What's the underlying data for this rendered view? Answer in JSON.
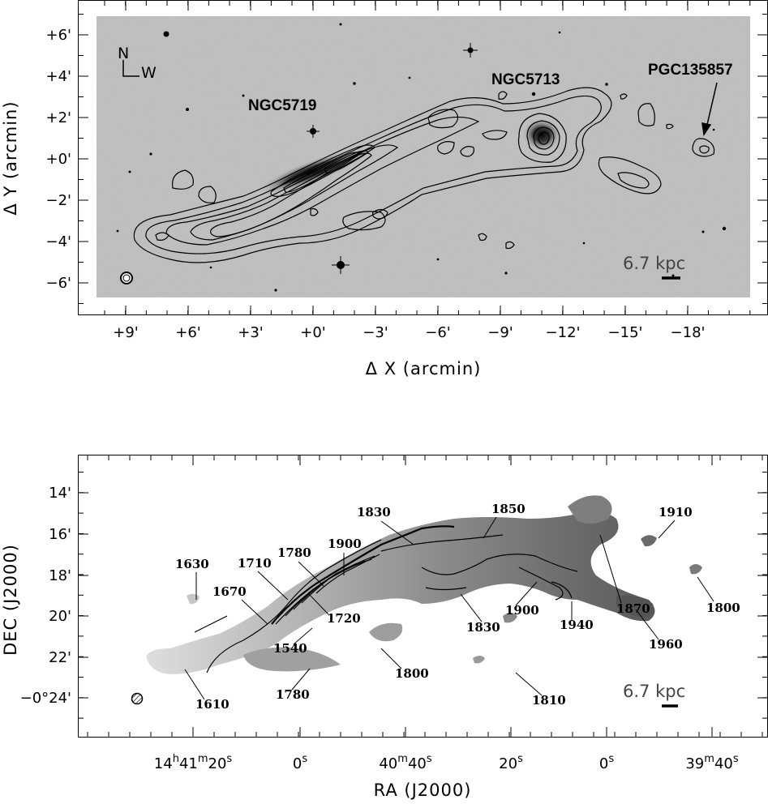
{
  "colors": {
    "sky": "#b8b8b8",
    "contour": "#000000"
  },
  "chart_data": [
    {
      "type": "contour",
      "panel": "top",
      "xlabel": "Δ X (arcmin)",
      "ylabel": "Δ Y (arcmin)",
      "xlim": [
        11,
        -21
      ],
      "ylim": [
        -7.5,
        7.5
      ],
      "x_ticks": [
        "+9'",
        "+6'",
        "+3'",
        "+0'",
        "−3'",
        "−6'",
        "−9'",
        "−12'",
        "−15'",
        "−18'"
      ],
      "y_ticks": [
        "+6'",
        "+4'",
        "+2'",
        "+0'",
        "−2'",
        "−4'",
        "−6'"
      ],
      "galaxies": [
        {
          "name": "NGC5719",
          "x": 0.0,
          "y": 0.0
        },
        {
          "name": "NGC5713",
          "x": -11.0,
          "y": 1.0
        },
        {
          "name": "PGC135857",
          "x": -18.8,
          "y": 0.5
        }
      ],
      "compass": {
        "north": "N",
        "west": "W"
      },
      "scale_bar": "6.7 kpc"
    },
    {
      "type": "contour",
      "panel": "bottom",
      "xlabel": "RA (J2000)",
      "ylabel": "DEC (J2000)",
      "x_ticks": [
        {
          "h": "14",
          "hs": "h",
          "m": "41",
          "ms": "m",
          "s": "20",
          "ss": "s"
        },
        {
          "s": "0",
          "ss": "s"
        },
        {
          "m": "40",
          "ms": "m",
          "s": "40",
          "ss": "s"
        },
        {
          "s": "20",
          "ss": "s"
        },
        {
          "s": "0",
          "ss": "s"
        },
        {
          "m": "39",
          "ms": "m",
          "s": "40",
          "ss": "s"
        }
      ],
      "y_ticks": [
        "14'",
        "16'",
        "18'",
        "20'",
        "22'",
        "−0°24'"
      ],
      "velocity_labels": [
        "1630",
        "1670",
        "1710",
        "1780",
        "1900",
        "1830",
        "1850",
        "1910",
        "1870",
        "1800",
        "1720",
        "1540",
        "1610",
        "1780",
        "1800",
        "1830",
        "1900",
        "1940",
        "1960",
        "1810"
      ],
      "scale_bar": "6.7 kpc"
    }
  ]
}
